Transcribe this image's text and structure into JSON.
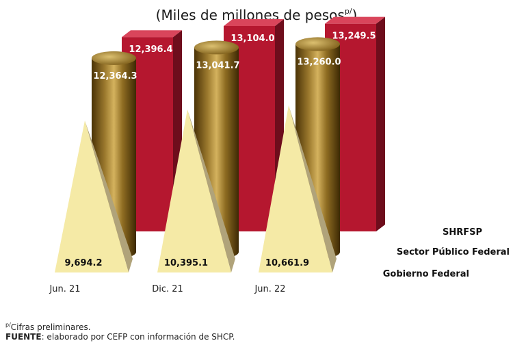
{
  "chart_data": {
    "type": "bar",
    "title": "(Miles de millones de pesos",
    "title_superscript": "p/",
    "categories": [
      "Jun. 21",
      "Dic. 21",
      "Jun. 22"
    ],
    "series": [
      {
        "name": "SHRFSP",
        "values": [
          12396.4,
          13104.0,
          13249.5
        ],
        "labels": [
          "12,396.4",
          "13,104.0",
          "13,249.5"
        ],
        "shape": "box",
        "color": "#b5172f"
      },
      {
        "name": "Sector Público Federal",
        "values": [
          12364.3,
          13041.7,
          13260.0
        ],
        "labels": [
          "12,364.3",
          "13,041.7",
          "13,260.0"
        ],
        "shape": "cylinder",
        "color": "#8c6a1c"
      },
      {
        "name": "Gobierno Federal",
        "values": [
          9694.2,
          10395.1,
          10661.9
        ],
        "labels": [
          "9,694.2",
          "10,395.1",
          "10,661.9"
        ],
        "shape": "pyramid",
        "color": "#f5eaa6"
      }
    ]
  },
  "footnote": {
    "sup": "p/",
    "text": "Cifras preliminares.",
    "source_label": "FUENTE",
    "source_text": ": elaborado por CEFP con información de SHCP."
  }
}
